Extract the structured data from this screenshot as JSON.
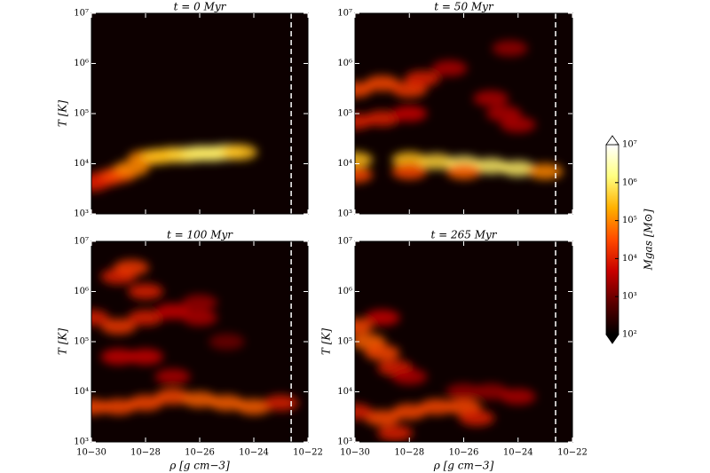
{
  "chart_data": [
    {
      "type": "hist2d",
      "title": "t = 0 Myr",
      "ylabel": "T [K]",
      "log": true,
      "xlim": [
        1e-30,
        1e-22
      ],
      "ylim": [
        1000,
        10000000
      ],
      "xticks": [
        1e-30,
        1e-28,
        1e-26,
        1e-24,
        1e-22
      ],
      "yticks": [
        {
          "value": 1000,
          "label": "10³"
        },
        {
          "value": 10000,
          "label": "10⁴"
        },
        {
          "value": 100000,
          "label": "10⁵"
        },
        {
          "value": 1000000,
          "label": "10⁶"
        },
        {
          "value": 10000000,
          "label": "10⁷"
        }
      ],
      "vline": 2.4e-23,
      "x": [
        1e-30,
        3e-30,
        1e-29,
        3e-29,
        1e-28,
        3e-28,
        1e-27,
        3e-27,
        1e-26,
        3e-26,
        1e-25,
        3e-25
      ],
      "y": [
        4000,
        5000,
        6000,
        8000,
        13000,
        14000,
        15000,
        15000,
        16000,
        16000,
        17000,
        17000
      ],
      "values": [
        10000,
        10000,
        30000,
        100000,
        100000,
        300000,
        300000,
        500000,
        1000000,
        1000000,
        1000000,
        300000
      ]
    },
    {
      "type": "hist2d",
      "title": "t = 50 Myr",
      "log": true,
      "xlim": [
        1e-30,
        1e-22
      ],
      "ylim": [
        1000,
        10000000
      ],
      "xticks": [
        1e-30,
        1e-28,
        1e-26,
        1e-24,
        1e-22
      ],
      "yticks": [
        {
          "value": 1000,
          "label": "10³"
        },
        {
          "value": 10000,
          "label": "10⁴"
        },
        {
          "value": 100000,
          "label": "10⁵"
        },
        {
          "value": 1000000,
          "label": "10⁶"
        },
        {
          "value": 10000000,
          "label": "10⁷"
        }
      ],
      "vline": 2.4e-23,
      "x": [
        1e-30,
        1e-29,
        1e-28,
        3e-28,
        1e-30,
        1e-29,
        1e-28,
        3e-27,
        1e-30,
        1e-28,
        1e-27,
        1e-26,
        1e-25,
        1e-24,
        1e-23,
        1e-30,
        1e-28,
        1e-26,
        1e-25,
        3e-25,
        5e-25,
        1e-24
      ],
      "y": [
        300000,
        400000,
        300000,
        500000,
        70000,
        80000,
        100000,
        800000,
        12000,
        12000,
        11000,
        10000,
        9000,
        8000,
        7000,
        6000,
        7000,
        7000,
        200000,
        100000,
        2000000,
        60000
      ],
      "values": [
        30000,
        30000,
        20000,
        10000,
        10000,
        10000,
        5000,
        3000,
        300000,
        300000,
        500000,
        1000000,
        1000000,
        1000000,
        100000,
        30000,
        30000,
        50000,
        3000,
        3000,
        2000,
        3000
      ]
    },
    {
      "type": "hist2d",
      "title": "t = 100 Myr",
      "xlabel": "ρ [g cm−3]",
      "ylabel": "T [K]",
      "log": true,
      "xlim": [
        1e-30,
        1e-22
      ],
      "ylim": [
        1000,
        10000000
      ],
      "xticks": [
        {
          "value": 1e-30,
          "label": "10−30"
        },
        {
          "value": 1e-28,
          "label": "10−28"
        },
        {
          "value": 1e-26,
          "label": "10−26"
        },
        {
          "value": 1e-24,
          "label": "10−24"
        },
        {
          "value": 1e-22,
          "label": "10−22"
        }
      ],
      "yticks": [
        {
          "value": 1000,
          "label": "10³"
        },
        {
          "value": 10000,
          "label": "10⁴"
        },
        {
          "value": 100000,
          "label": "10⁵"
        },
        {
          "value": 1000000,
          "label": "10⁶"
        },
        {
          "value": 10000000,
          "label": "10⁷"
        }
      ],
      "vline": 2.4e-23,
      "x": [
        1e-29,
        3e-29,
        1e-28,
        1e-30,
        1e-29,
        1e-28,
        1e-27,
        1e-26,
        1e-29,
        1e-28,
        1e-25,
        1e-30,
        1e-29,
        1e-28,
        1e-27,
        1e-26,
        1e-25,
        1e-24,
        1e-23,
        1e-27,
        1e-26
      ],
      "y": [
        2000000,
        3000000,
        1000000,
        300000,
        200000,
        300000,
        400000,
        300000,
        50000,
        50000,
        100000,
        5000,
        5000,
        6000,
        8000,
        7000,
        6000,
        5000,
        6000,
        20000,
        600000
      ],
      "values": [
        10000,
        20000,
        10000,
        10000,
        20000,
        10000,
        5000,
        3000,
        5000,
        5000,
        1000,
        30000,
        30000,
        30000,
        30000,
        50000,
        50000,
        50000,
        10000,
        3000,
        2000
      ]
    },
    {
      "type": "hist2d",
      "title": "t = 265 Myr",
      "xlabel": "ρ [g cm−3]",
      "ylabel": "T [K]",
      "log": true,
      "xlim": [
        1e-30,
        1e-22
      ],
      "ylim": [
        1000,
        10000000
      ],
      "xticks": [
        {
          "value": 1e-30,
          "label": "10−30"
        },
        {
          "value": 1e-28,
          "label": "10−28"
        },
        {
          "value": 1e-26,
          "label": "10−26"
        },
        {
          "value": 1e-24,
          "label": "10−24"
        },
        {
          "value": 1e-22,
          "label": "10−22"
        }
      ],
      "yticks": [
        {
          "value": 1000,
          "label": "10³"
        },
        {
          "value": 10000,
          "label": "10⁴"
        },
        {
          "value": 100000,
          "label": "10⁵"
        },
        {
          "value": 1000000,
          "label": "10⁶"
        },
        {
          "value": 10000000,
          "label": "10⁷"
        }
      ],
      "vline": 2.4e-23,
      "x": [
        1e-30,
        3e-30,
        1e-29,
        3e-29,
        1e-29,
        1e-28,
        1e-29,
        1e-28,
        1e-27,
        1e-26,
        3e-26,
        1e-30,
        1e-26,
        1e-25,
        1e-24,
        3e-29
      ],
      "y": [
        200000,
        100000,
        60000,
        30000,
        300000,
        20000,
        3000,
        4000,
        5000,
        5000,
        3000,
        4000,
        10000,
        10000,
        8000,
        1500
      ],
      "values": [
        30000,
        50000,
        30000,
        10000,
        5000,
        3000,
        30000,
        30000,
        30000,
        30000,
        10000,
        10000,
        2000,
        2000,
        3000,
        10000
      ]
    },
    {
      "type": "colorbar",
      "label": "Mgas [M⊙]",
      "log": true,
      "lim": [
        100,
        10000000
      ],
      "ticks": [
        {
          "value": 100,
          "label": "10²"
        },
        {
          "value": 1000,
          "label": "10³"
        },
        {
          "value": 10000,
          "label": "10⁴"
        },
        {
          "value": 100000,
          "label": "10⁵"
        },
        {
          "value": 1000000,
          "label": "10⁶"
        },
        {
          "value": 10000000,
          "label": "10⁷"
        }
      ],
      "colors": [
        "#000000",
        "#5a0000",
        "#c80000",
        "#ff4a00",
        "#ffb000",
        "#ffff80",
        "#ffffff"
      ]
    }
  ]
}
